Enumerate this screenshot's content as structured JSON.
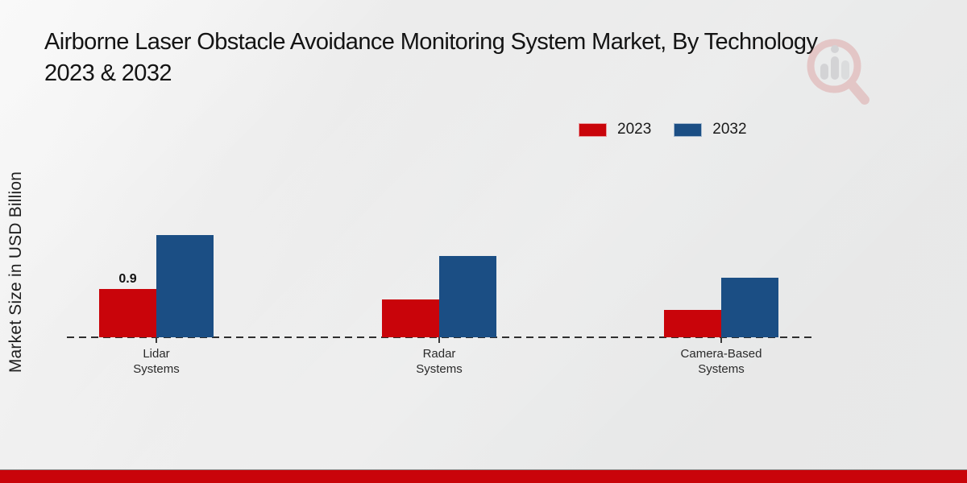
{
  "page": {
    "title_line1": "Airborne Laser Obstacle Avoidance Monitoring System Market, By Technology",
    "title_line2": "2023 & 2032",
    "watermark_icon": "magnifier-bar-chart-logo"
  },
  "colors": {
    "accent_red": "#c9040a",
    "accent_blue": "#1b4e84",
    "footer_band": "#c9040a"
  },
  "chart_data": {
    "type": "bar",
    "title": "Airborne Laser Obstacle Avoidance Monitoring System Market, By Technology 2023 & 2032",
    "xlabel": "",
    "ylabel": "Market Size in USD Billion",
    "categories": [
      "Lidar Systems",
      "Radar Systems",
      "Camera-Based Systems"
    ],
    "series": [
      {
        "name": "2023",
        "color": "#c9040a",
        "values": [
          0.9,
          0.7,
          0.5
        ]
      },
      {
        "name": "2032",
        "color": "#1b4e84",
        "values": [
          1.9,
          1.5,
          1.1
        ]
      }
    ],
    "value_labels": [
      {
        "series": "2023",
        "category": "Lidar Systems",
        "text": "0.9"
      }
    ],
    "ylim": [
      0,
      2.5
    ],
    "grid": false,
    "legend_position": "top-right",
    "baseline_style": "dashed"
  }
}
